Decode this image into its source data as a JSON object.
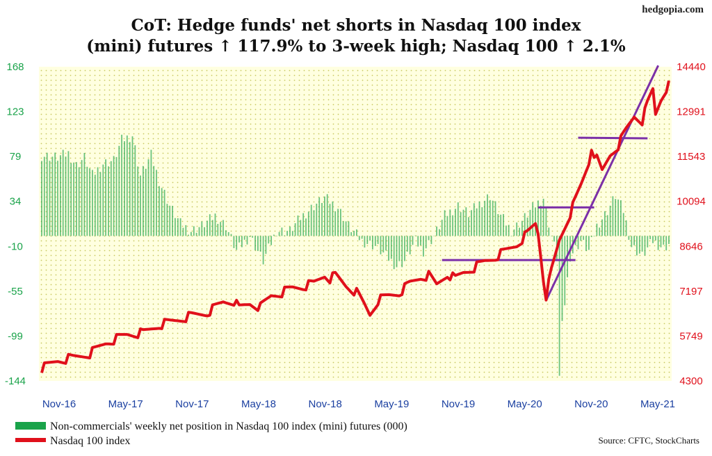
{
  "brand": "hedgopia.com",
  "title_line1": "CoT: Hedge funds' net shorts in Nasdaq 100 index",
  "title_line2": "(mini) futures ↑ 117.9% to 3-week high; Nasdaq 100 ↑ 2.1%",
  "legend_bars": "Non-commercials' weekly net position in Nasdaq 100 index (mini) futures (000)",
  "legend_line": "Nasdaq 100 index",
  "source": "Source: CFTC, StockCharts",
  "colors": {
    "bars": "#1aa34a",
    "line": "#e0101b",
    "trend": "#7b2fa8",
    "plot_bg": "#ffffe0",
    "dots": "#c8c860"
  },
  "chart_data": {
    "type": "bar+line",
    "grid": "dotted background",
    "x_ticks": [
      "Nov-16",
      "May-17",
      "Nov-17",
      "May-18",
      "Nov-18",
      "May-19",
      "Nov-19",
      "May-20",
      "Nov-20",
      "May-21"
    ],
    "left_axis": {
      "ticks": [
        "168",
        "123",
        "79",
        "34",
        "-10",
        "-55",
        "-99",
        "-144"
      ],
      "ylim": [
        -144,
        168
      ]
    },
    "right_axis": {
      "ticks": [
        "14440",
        "12991",
        "11543",
        "10094",
        "8646",
        "7197",
        "5749",
        "4300"
      ],
      "ylim": [
        4300,
        14440
      ]
    },
    "series": [
      {
        "name": "Non-commercials' weekly net position in Nasdaq 100 index (mini) futures (000)",
        "type": "bar",
        "axis": "left",
        "anchors": [
          [
            0,
            80
          ],
          [
            6,
            78
          ],
          [
            10,
            82
          ],
          [
            13,
            70
          ],
          [
            16,
            78
          ],
          [
            19,
            60
          ],
          [
            23,
            72
          ],
          [
            27,
            75
          ],
          [
            30,
            95
          ],
          [
            34,
            100
          ],
          [
            37,
            60
          ],
          [
            41,
            80
          ],
          [
            44,
            55
          ],
          [
            48,
            30
          ],
          [
            52,
            12
          ],
          [
            56,
            5
          ],
          [
            60,
            10
          ],
          [
            65,
            20
          ],
          [
            69,
            10
          ],
          [
            73,
            -15
          ],
          [
            78,
            0
          ],
          [
            83,
            -25
          ],
          [
            88,
            5
          ],
          [
            93,
            5
          ],
          [
            97,
            18
          ],
          [
            102,
            30
          ],
          [
            106,
            38
          ],
          [
            111,
            28
          ],
          [
            115,
            10
          ],
          [
            120,
            -5
          ],
          [
            125,
            -10
          ],
          [
            129,
            -20
          ],
          [
            133,
            -30
          ],
          [
            136,
            -25
          ],
          [
            140,
            -5
          ],
          [
            143,
            -15
          ],
          [
            147,
            0
          ],
          [
            151,
            20
          ],
          [
            156,
            30
          ],
          [
            160,
            22
          ],
          [
            164,
            32
          ],
          [
            168,
            40
          ],
          [
            172,
            20
          ],
          [
            176,
            5
          ],
          [
            180,
            15
          ],
          [
            184,
            28
          ],
          [
            188,
            38
          ],
          [
            191,
            0
          ],
          [
            193,
            -20
          ],
          [
            194,
            -140
          ],
          [
            195,
            -90
          ],
          [
            198,
            -20
          ],
          [
            202,
            -5
          ],
          [
            205,
            -15
          ],
          [
            208,
            10
          ],
          [
            212,
            25
          ],
          [
            215,
            40
          ],
          [
            218,
            25
          ],
          [
            221,
            -10
          ],
          [
            225,
            -20
          ],
          [
            229,
            -5
          ],
          [
            233,
            -12
          ],
          [
            235,
            -8
          ]
        ],
        "weeks": 236
      },
      {
        "name": "Nasdaq 100 index",
        "type": "line",
        "axis": "right",
        "anchors": [
          [
            0,
            4700
          ],
          [
            6,
            4960
          ],
          [
            12,
            5050
          ],
          [
            18,
            5180
          ],
          [
            24,
            5530
          ],
          [
            28,
            5660
          ],
          [
            32,
            5800
          ],
          [
            38,
            5850
          ],
          [
            44,
            6100
          ],
          [
            50,
            6250
          ],
          [
            56,
            6400
          ],
          [
            62,
            6500
          ],
          [
            68,
            6850
          ],
          [
            72,
            6880
          ],
          [
            74,
            6650
          ],
          [
            78,
            6800
          ],
          [
            82,
            6680
          ],
          [
            86,
            7050
          ],
          [
            90,
            7150
          ],
          [
            94,
            7300
          ],
          [
            98,
            7350
          ],
          [
            102,
            7450
          ],
          [
            106,
            7720
          ],
          [
            108,
            7600
          ],
          [
            110,
            7700
          ],
          [
            114,
            7380
          ],
          [
            118,
            7150
          ],
          [
            121,
            6750
          ],
          [
            123,
            6450
          ],
          [
            126,
            6900
          ],
          [
            130,
            7050
          ],
          [
            134,
            7150
          ],
          [
            138,
            7450
          ],
          [
            142,
            7650
          ],
          [
            145,
            7700
          ],
          [
            148,
            7400
          ],
          [
            152,
            7750
          ],
          [
            155,
            7600
          ],
          [
            158,
            7800
          ],
          [
            162,
            7950
          ],
          [
            166,
            8150
          ],
          [
            170,
            8300
          ],
          [
            174,
            8500
          ],
          [
            178,
            8700
          ],
          [
            182,
            9050
          ],
          [
            185,
            9380
          ],
          [
            186,
            9080
          ],
          [
            187,
            8350
          ],
          [
            188,
            7600
          ],
          [
            189,
            7050
          ],
          [
            191,
            7850
          ],
          [
            194,
            8850
          ],
          [
            198,
            9700
          ],
          [
            202,
            10600
          ],
          [
            205,
            11350
          ],
          [
            206,
            11850
          ],
          [
            208,
            11450
          ],
          [
            210,
            11050
          ],
          [
            213,
            11600
          ],
          [
            216,
            11900
          ],
          [
            219,
            12400
          ],
          [
            222,
            12850
          ],
          [
            225,
            12700
          ],
          [
            227,
            13250
          ],
          [
            229,
            13700
          ],
          [
            230,
            12900
          ],
          [
            232,
            13400
          ],
          [
            234,
            13750
          ],
          [
            235,
            13850
          ]
        ],
        "weeks": 236
      }
    ],
    "trendlines": [
      {
        "x": [
          150,
          200
        ],
        "y": [
          8200,
          8200
        ]
      },
      {
        "x": [
          186,
          207
        ],
        "y": [
          9900,
          9900
        ]
      },
      {
        "x": [
          201,
          227
        ],
        "y": [
          12150,
          12130
        ]
      },
      {
        "x": [
          189,
          231
        ],
        "y": [
          6900,
          14480
        ]
      }
    ]
  }
}
